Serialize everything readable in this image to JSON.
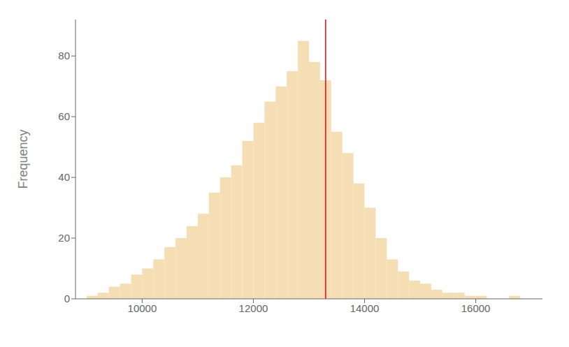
{
  "chart_data": {
    "type": "histogram",
    "ylabel": "Frequency",
    "bins": [
      9000,
      9200,
      9400,
      9600,
      9800,
      10000,
      10200,
      10400,
      10600,
      10800,
      11000,
      11200,
      11400,
      11600,
      11800,
      12000,
      12200,
      12400,
      12600,
      12800,
      13000,
      13200,
      13400,
      13600,
      13800,
      14000,
      14200,
      14400,
      14600,
      14800,
      15000,
      15200,
      15400,
      15600,
      15800,
      16000,
      16200,
      16400,
      16600,
      16800
    ],
    "values": [
      1,
      2,
      4,
      5,
      8,
      10,
      13,
      17,
      20,
      24,
      28,
      35,
      40,
      44,
      52,
      58,
      65,
      70,
      75,
      85,
      78,
      72,
      55,
      48,
      38,
      30,
      20,
      13,
      9,
      6,
      5,
      3,
      2,
      2,
      1,
      1,
      0,
      0,
      1
    ],
    "color": "#f5deb3",
    "xlim": [
      8800,
      17200
    ],
    "xticks": [
      10000,
      12000,
      14000,
      16000
    ],
    "ylim": [
      0,
      92
    ],
    "yticks": [
      0,
      20,
      40,
      60,
      80
    ],
    "vlines": [
      {
        "x": 13300,
        "color": "red"
      }
    ],
    "grid": false
  }
}
